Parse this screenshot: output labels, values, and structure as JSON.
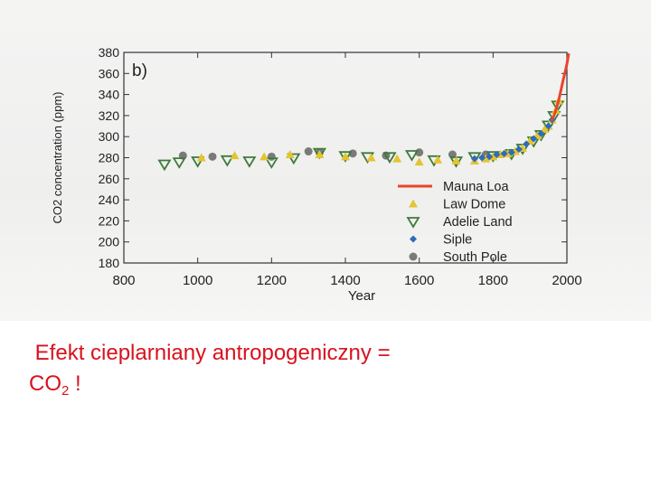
{
  "chart_data": {
    "type": "scatter",
    "panel_label": "b)",
    "xlabel": "Year",
    "ylabel": "CO2 concentration (ppm)",
    "xlim": [
      800,
      2000
    ],
    "ylim": [
      180,
      380
    ],
    "x_ticks": [
      800,
      1000,
      1200,
      1400,
      1600,
      1800,
      2000
    ],
    "y_ticks": [
      180,
      200,
      220,
      240,
      260,
      280,
      300,
      320,
      340,
      360,
      380
    ],
    "legend_position": "bottom-right",
    "series": [
      {
        "name": "Mauna Loa",
        "marker": "line",
        "color": "#e8452c",
        "x": [
          1958,
          1965,
          1970,
          1975,
          1980,
          1985,
          1990,
          1995,
          2000,
          2005
        ],
        "y": [
          315,
          320,
          325,
          331,
          338,
          346,
          354,
          361,
          369,
          379
        ]
      },
      {
        "name": "Law Dome",
        "marker": "triangle-up",
        "color": "#e4c431",
        "x": [
          1010,
          1100,
          1180,
          1250,
          1330,
          1400,
          1470,
          1540,
          1600,
          1650,
          1700,
          1750,
          1780,
          1800,
          1820,
          1840,
          1860,
          1880,
          1900,
          1920,
          1940,
          1950,
          1960,
          1970,
          1978
        ],
        "y": [
          280,
          282,
          281,
          283,
          283,
          281,
          280,
          279,
          276,
          278,
          277,
          277,
          279,
          281,
          283,
          284,
          286,
          289,
          296,
          301,
          307,
          310,
          316,
          325,
          334
        ]
      },
      {
        "name": "Adelie Land",
        "marker": "triangle-down",
        "color": "#3e7a3c",
        "x": [
          910,
          950,
          1000,
          1080,
          1140,
          1200,
          1260,
          1330,
          1400,
          1460,
          1520,
          1580,
          1640,
          1700,
          1750,
          1800,
          1850,
          1880,
          1910,
          1930,
          1950,
          1965,
          1975
        ],
        "y": [
          274,
          276,
          277,
          278,
          277,
          276,
          280,
          285,
          282,
          281,
          281,
          283,
          278,
          277,
          281,
          282,
          284,
          289,
          296,
          302,
          311,
          320,
          330
        ]
      },
      {
        "name": "Siple",
        "marker": "diamond",
        "color": "#2c6cb8",
        "x": [
          1750,
          1770,
          1790,
          1810,
          1830,
          1850,
          1870,
          1890,
          1910,
          1930,
          1950,
          1960
        ],
        "y": [
          279,
          280,
          281,
          283,
          284,
          285,
          288,
          293,
          298,
          303,
          310,
          316
        ]
      },
      {
        "name": "South Pole",
        "marker": "circle",
        "color": "#7a7a7a",
        "x": [
          960,
          1040,
          1200,
          1300,
          1330,
          1420,
          1510,
          1600,
          1690,
          1780
        ],
        "y": [
          282,
          281,
          281,
          286,
          285,
          284,
          282,
          285,
          283,
          283
        ]
      }
    ]
  },
  "caption": {
    "line1": "Efekt cieplarniany antropogeniczny =",
    "line2_main": "CO",
    "line2_sub": "2",
    "line2_tail": " !"
  }
}
